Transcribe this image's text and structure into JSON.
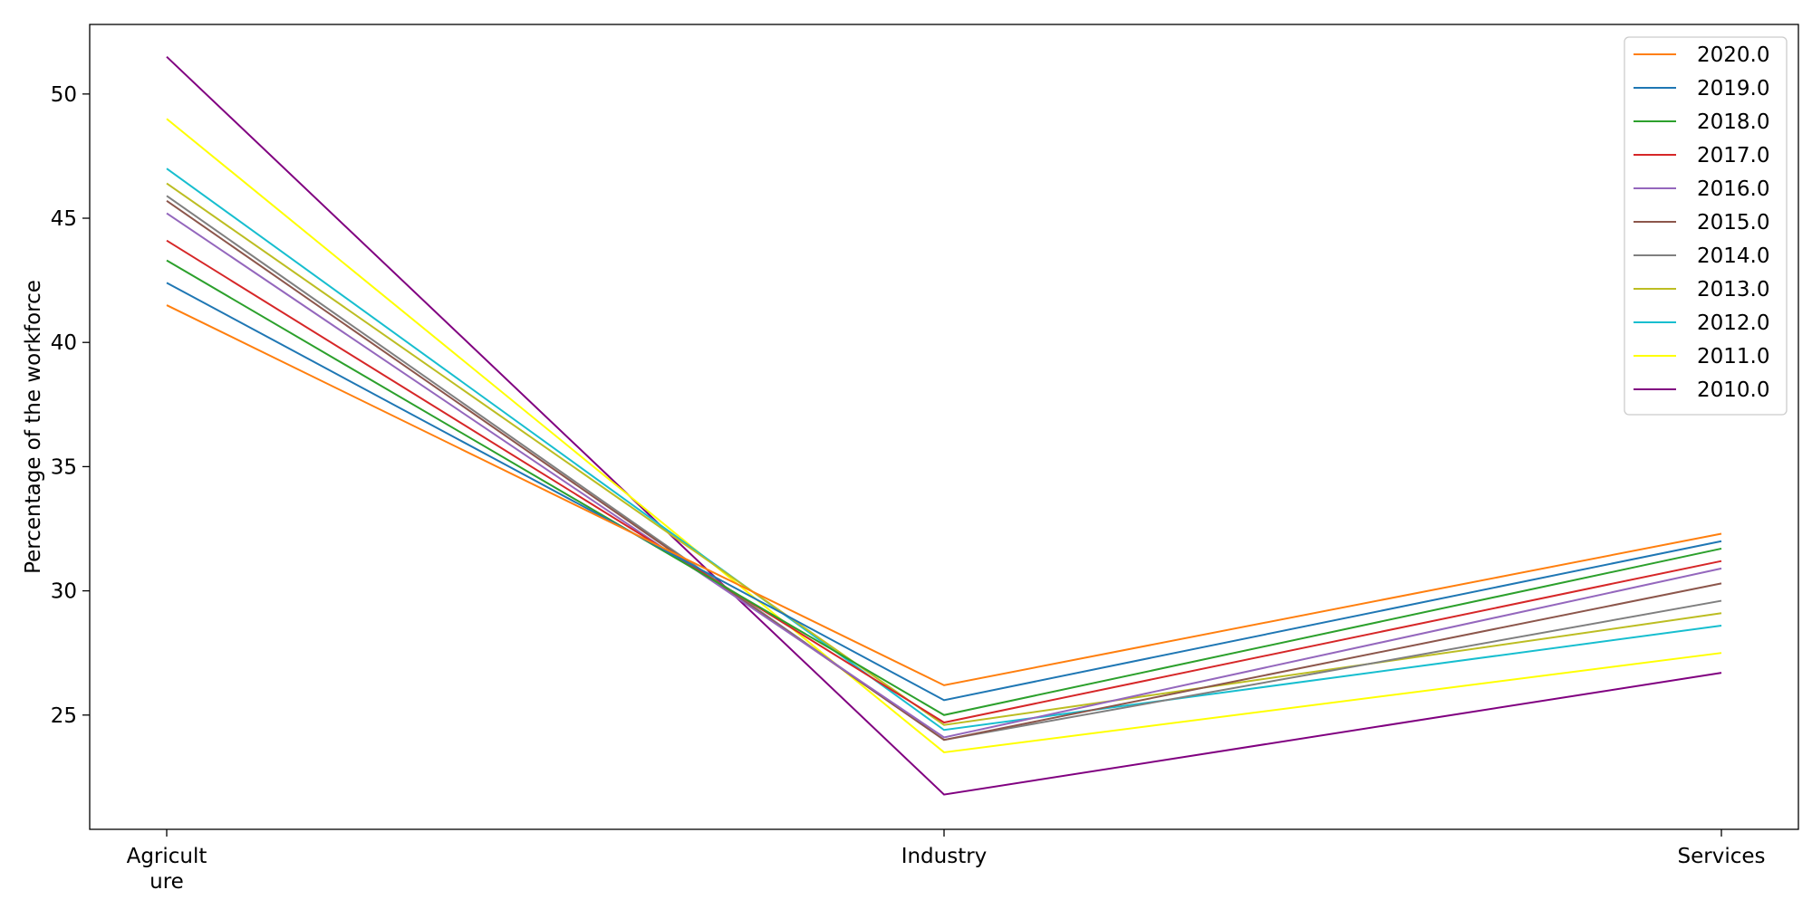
{
  "chart_data": {
    "type": "line",
    "title": "",
    "xlabel": "",
    "ylabel": "Percentage of the workforce",
    "categories": [
      "Agricult\nure",
      "Industry",
      "Services"
    ],
    "ylim": [
      20.4,
      52.8
    ],
    "yticks": [
      25,
      30,
      35,
      40,
      45,
      50
    ],
    "grid": false,
    "legend_position": "top-right",
    "series": [
      {
        "name": "2020.0",
        "color": "#ff7f0e",
        "values": [
          41.5,
          26.2,
          32.3
        ]
      },
      {
        "name": "2019.0",
        "color": "#1f77b4",
        "values": [
          42.4,
          25.6,
          32.0
        ]
      },
      {
        "name": "2018.0",
        "color": "#2ca02c",
        "values": [
          43.3,
          25.0,
          31.7
        ]
      },
      {
        "name": "2017.0",
        "color": "#d62728",
        "values": [
          44.1,
          24.7,
          31.2
        ]
      },
      {
        "name": "2016.0",
        "color": "#9467bd",
        "values": [
          45.2,
          24.1,
          30.9
        ]
      },
      {
        "name": "2015.0",
        "color": "#8c564b",
        "values": [
          45.7,
          24.0,
          30.3
        ]
      },
      {
        "name": "2014.0",
        "color": "#7f7f7f",
        "values": [
          45.9,
          24.0,
          29.6
        ]
      },
      {
        "name": "2013.0",
        "color": "#bcbd22",
        "values": [
          46.4,
          24.6,
          29.1
        ]
      },
      {
        "name": "2012.0",
        "color": "#17becf",
        "values": [
          47.0,
          24.4,
          28.6
        ]
      },
      {
        "name": "2011.0",
        "color": "#ffff00",
        "values": [
          49.0,
          23.5,
          27.5
        ]
      },
      {
        "name": "2010.0",
        "color": "#800080",
        "values": [
          51.5,
          21.8,
          26.7
        ]
      }
    ]
  }
}
